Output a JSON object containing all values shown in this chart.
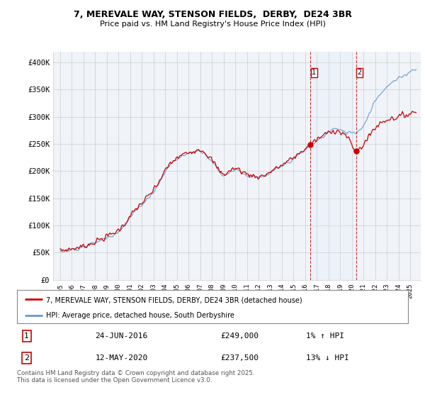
{
  "title_line1": "7, MEREVALE WAY, STENSON FIELDS,  DERBY,  DE24 3BR",
  "title_line2": "Price paid vs. HM Land Registry's House Price Index (HPI)",
  "legend_line1": "7, MEREVALE WAY, STENSON FIELDS, DERBY, DE24 3BR (detached house)",
  "legend_line2": "HPI: Average price, detached house, South Derbyshire",
  "annotation1_date": "24-JUN-2016",
  "annotation1_price": "£249,000",
  "annotation1_hpi": "1% ↑ HPI",
  "annotation2_date": "12-MAY-2020",
  "annotation2_price": "£237,500",
  "annotation2_hpi": "13% ↓ HPI",
  "footer": "Contains HM Land Registry data © Crown copyright and database right 2025.\nThis data is licensed under the Open Government Licence v3.0.",
  "red_color": "#cc0000",
  "blue_color": "#6699cc",
  "shade_color": "#ddeeff",
  "background_color": "#f0f4f8",
  "ylim": [
    0,
    420000
  ],
  "yticks": [
    0,
    50000,
    100000,
    150000,
    200000,
    250000,
    300000,
    350000,
    400000
  ],
  "ytick_labels": [
    "£0",
    "£50K",
    "£100K",
    "£150K",
    "£200K",
    "£250K",
    "£300K",
    "£350K",
    "£400K"
  ],
  "sale1_year": 2016.46,
  "sale1_price": 249000,
  "sale2_year": 2020.37,
  "sale2_price": 237500,
  "xstart_year": 1995,
  "xend_year": 2026
}
